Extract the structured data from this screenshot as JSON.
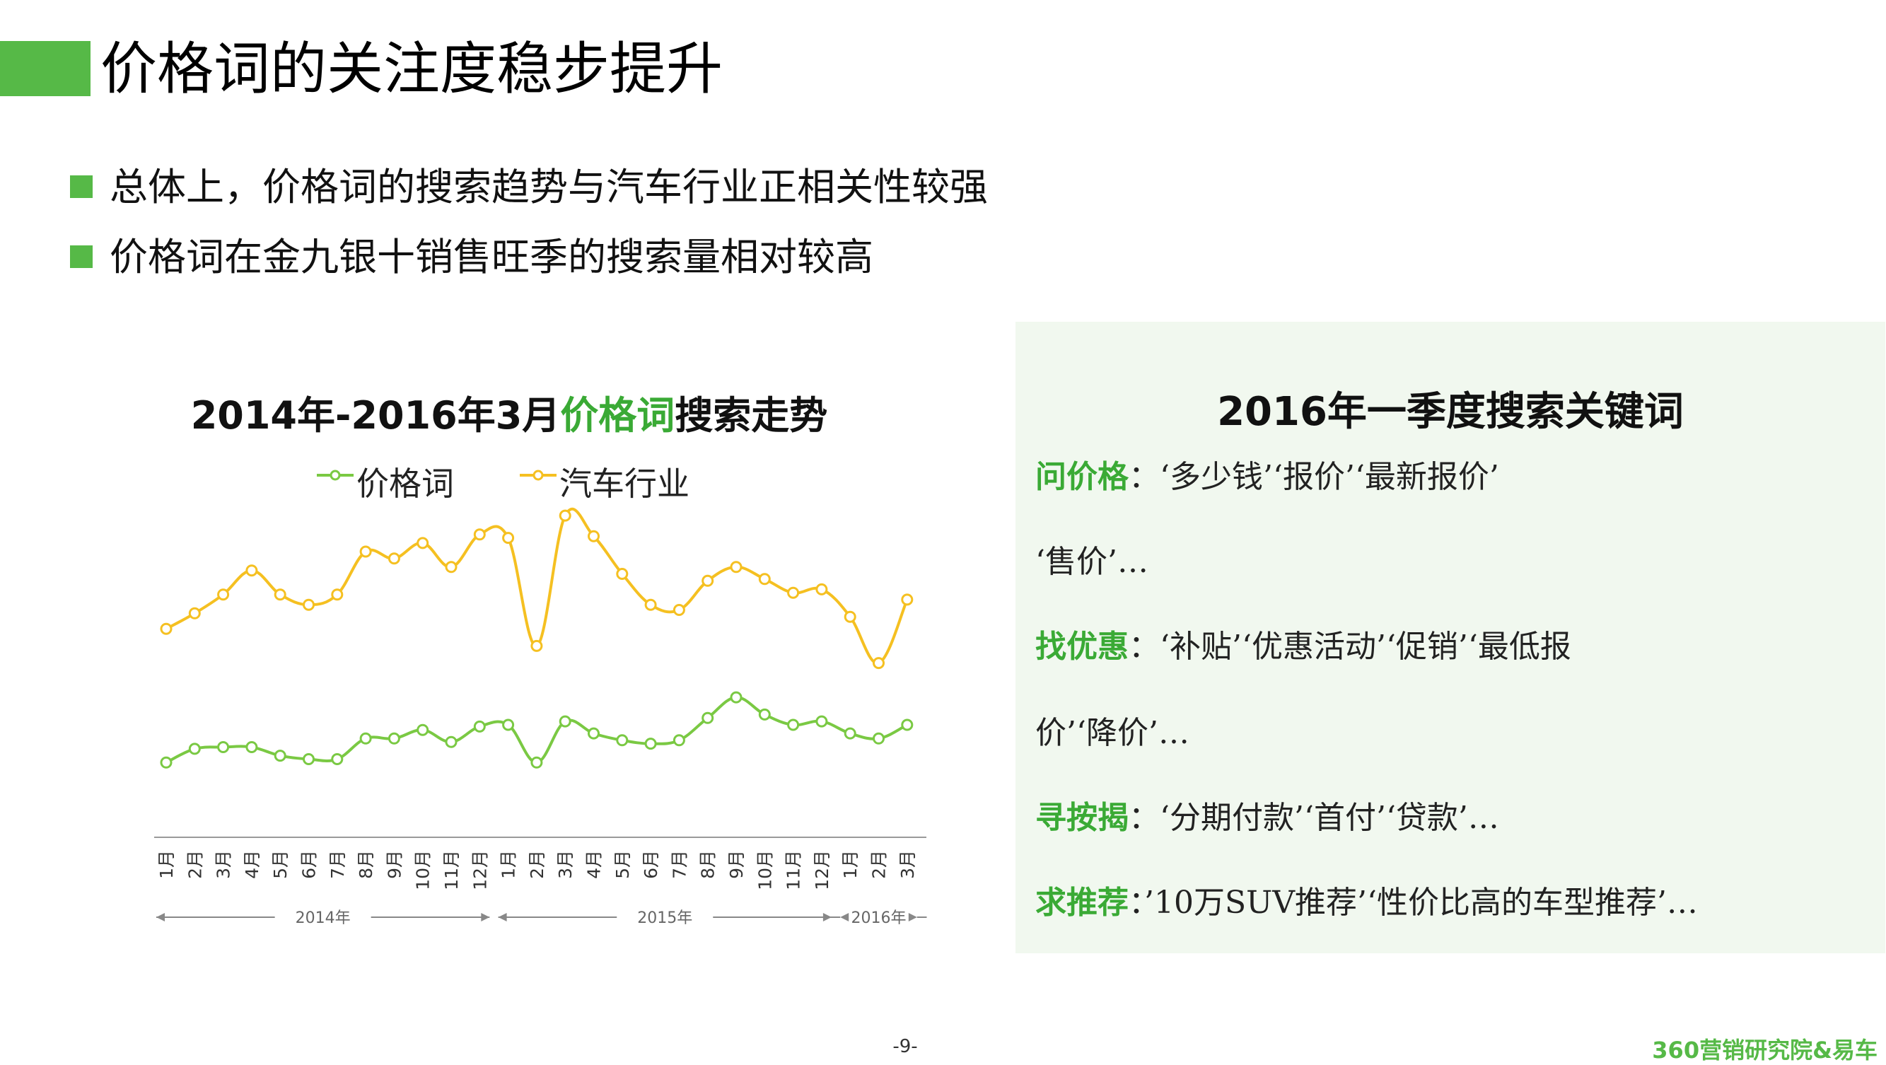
{
  "page": {
    "title": "价格词的关注度稳步提升",
    "bullets": [
      "总体上，价格词的搜索趋势与汽车行业正相关性较强",
      "价格词在金九银十销售旺季的搜索量相对较高"
    ],
    "page_number": "-9-",
    "brand": "360营销研究院&易车",
    "accent_color": "#56b947"
  },
  "chart_data": {
    "type": "line",
    "title_parts": {
      "prefix": "2014年-2016年3月",
      "highlight": "价格词",
      "suffix": "搜索走势"
    },
    "categories": [
      "1月",
      "2月",
      "3月",
      "4月",
      "5月",
      "6月",
      "7月",
      "8月",
      "9月",
      "10月",
      "11月",
      "12月",
      "1月",
      "2月",
      "3月",
      "4月",
      "5月",
      "6月",
      "7月",
      "8月",
      "9月",
      "10月",
      "11月",
      "12月",
      "1月",
      "2月",
      "3月"
    ],
    "year_groups": [
      {
        "label": "2014年",
        "start": 0,
        "end": 11
      },
      {
        "label": "2015年",
        "start": 12,
        "end": 23
      },
      {
        "label": "2016年",
        "start": 24,
        "end": 26
      }
    ],
    "series": [
      {
        "name": "价格词",
        "color": "#7ac943",
        "values": [
          22,
          26,
          26.5,
          26.5,
          24,
          23,
          23,
          29,
          29,
          31.5,
          28,
          32.5,
          33,
          22,
          34,
          30.5,
          28.5,
          27.5,
          28.5,
          35,
          41,
          36,
          33,
          34,
          30.5,
          29,
          33
        ]
      },
      {
        "name": "汽车行业",
        "color": "#f5c021",
        "values": [
          61,
          65.5,
          71,
          78,
          71,
          68,
          71,
          83.5,
          81.5,
          86,
          79,
          88.5,
          87.5,
          56,
          94,
          88,
          77,
          68,
          66.5,
          75,
          79,
          75.5,
          71.5,
          72.5,
          64.5,
          51,
          69.5
        ]
      }
    ],
    "ylim": [
      0,
      100
    ],
    "legend_position": "top"
  },
  "keywords": {
    "title": "2016年一季度搜索关键词",
    "lines": [
      {
        "label": "问价格",
        "text": "：‘多少钱’‘报价’‘最新报价’"
      },
      {
        "label": "",
        "text": "‘售价’…"
      },
      {
        "label": "找优惠",
        "text": "：‘补贴’‘优惠活动’‘促销’‘最低报"
      },
      {
        "label": "",
        "text": "价’‘降价’…"
      },
      {
        "label": "寻按揭",
        "text": "：‘分期付款’‘首付’‘贷款’…"
      },
      {
        "label": "求推荐",
        "text": "：’10万SUV推荐’‘性价比高的车型推荐’…"
      }
    ]
  }
}
